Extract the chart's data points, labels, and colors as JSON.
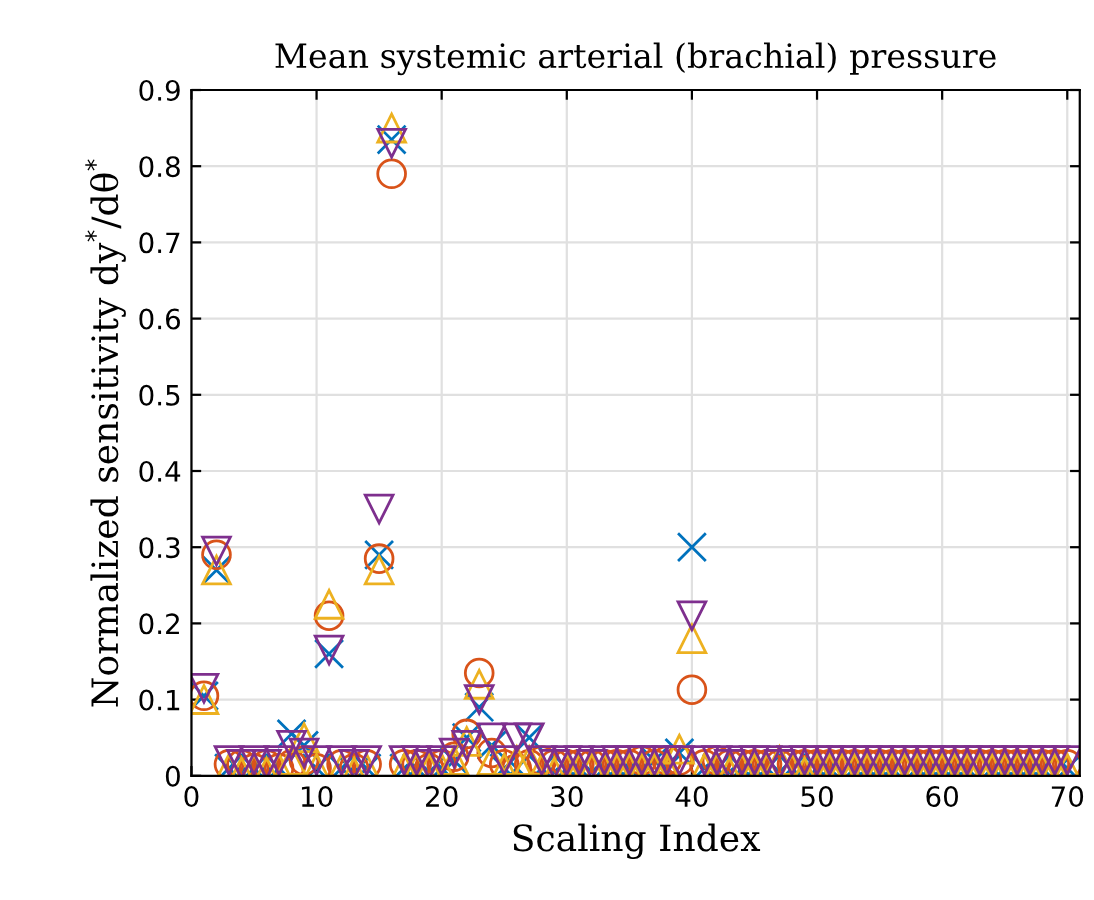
{
  "chart_data": {
    "type": "scatter",
    "title": "Mean systemic arterial (brachial) pressure",
    "xlabel": "Scaling Index",
    "ylabel": "Normalized sensitivity dy$^{*}$/dθ$^{*}$",
    "x": [
      1,
      2,
      3,
      4,
      5,
      6,
      7,
      8,
      9,
      10,
      11,
      12,
      13,
      14,
      15,
      16,
      17,
      18,
      19,
      20,
      21,
      22,
      23,
      24,
      25,
      26,
      27,
      28,
      29,
      30,
      31,
      32,
      33,
      34,
      35,
      36,
      37,
      38,
      39,
      40,
      41,
      42,
      43,
      44,
      45,
      46,
      47,
      48,
      49,
      50,
      51,
      52,
      53,
      54,
      55,
      56,
      57,
      58,
      59,
      60,
      61,
      62,
      63,
      64,
      65,
      66,
      67,
      68,
      69,
      70
    ],
    "xlim": [
      0,
      71
    ],
    "xticks": [
      0,
      10,
      20,
      30,
      40,
      50,
      60,
      70
    ],
    "ylim": [
      0,
      0.9
    ],
    "yticks": [
      0,
      0.1,
      0.2,
      0.3,
      0.4,
      0.5,
      0.6,
      0.7,
      0.8,
      0.9
    ],
    "grid": true,
    "series": [
      {
        "color": "#0072bd",
        "marker": "cross",
        "values": [
          0.105,
          0.27,
          0.01,
          0.005,
          0.01,
          0.005,
          0.01,
          0.055,
          0.04,
          0.01,
          0.16,
          0.01,
          0.005,
          0.01,
          0.29,
          0.835,
          0.01,
          0.01,
          0.005,
          0.01,
          0.02,
          0.05,
          0.09,
          0.04,
          0.01,
          0.01,
          0.05,
          0.01,
          0.005,
          0.01,
          0.01,
          0.005,
          0.01,
          0.01,
          0.01,
          0.01,
          0.02,
          0.01,
          0.03,
          0.3,
          0.01,
          0.01,
          0.005,
          0.01,
          0.01,
          0.01,
          0.005,
          0.01,
          0.01,
          0.01,
          0.01,
          0.005,
          0.01,
          0.01,
          0.01,
          0.01,
          0.005,
          0.01,
          0.01,
          0.01,
          0.01,
          0.01,
          0.005,
          0.01,
          0.01,
          0.01,
          0.01,
          0.01,
          0.005,
          0.01
        ]
      },
      {
        "color": "#d95319",
        "marker": "circle",
        "values": [
          0.105,
          0.29,
          0.015,
          0.015,
          0.01,
          0.015,
          0.01,
          0.015,
          0.02,
          0.01,
          0.21,
          0.015,
          0.01,
          0.015,
          0.285,
          0.79,
          0.015,
          0.015,
          0.01,
          0.015,
          0.025,
          0.055,
          0.135,
          0.03,
          0.015,
          0.01,
          0.015,
          0.02,
          0.015,
          0.015,
          0.015,
          0.015,
          0.015,
          0.015,
          0.015,
          0.02,
          0.015,
          0.02,
          0.02,
          0.113,
          0.015,
          0.02,
          0.015,
          0.015,
          0.015,
          0.015,
          0.015,
          0.015,
          0.015,
          0.015,
          0.015,
          0.015,
          0.015,
          0.015,
          0.015,
          0.015,
          0.015,
          0.015,
          0.015,
          0.015,
          0.015,
          0.015,
          0.015,
          0.015,
          0.015,
          0.015,
          0.015,
          0.015,
          0.015,
          0.015
        ]
      },
      {
        "color": "#edb120",
        "marker": "triangle",
        "values": [
          0.1,
          0.27,
          0.01,
          0.005,
          0.01,
          0.005,
          0.01,
          0.02,
          0.05,
          0.01,
          0.225,
          0.01,
          0.005,
          0.01,
          0.27,
          0.85,
          0.01,
          0.01,
          0.01,
          0.01,
          0.02,
          0.045,
          0.12,
          0.02,
          0.01,
          0.02,
          0.02,
          0.01,
          0.005,
          0.01,
          0.01,
          0.01,
          0.01,
          0.01,
          0.01,
          0.01,
          0.01,
          0.01,
          0.035,
          0.18,
          0.01,
          0.01,
          0.005,
          0.01,
          0.01,
          0.01,
          0.02,
          0.01,
          0.005,
          0.01,
          0.01,
          0.01,
          0.01,
          0.01,
          0.01,
          0.01,
          0.01,
          0.01,
          0.01,
          0.01,
          0.01,
          0.01,
          0.01,
          0.01,
          0.01,
          0.01,
          0.01,
          0.01,
          0.01,
          0.01
        ]
      },
      {
        "color": "#7e2f8e",
        "marker": "triangle_down",
        "values": [
          0.115,
          0.295,
          0.02,
          0.015,
          0.02,
          0.015,
          0.02,
          0.04,
          0.03,
          0.02,
          0.165,
          0.02,
          0.015,
          0.02,
          0.35,
          0.83,
          0.02,
          0.02,
          0.015,
          0.02,
          0.03,
          0.04,
          0.1,
          0.05,
          0.02,
          0.05,
          0.05,
          0.02,
          0.015,
          0.02,
          0.02,
          0.015,
          0.02,
          0.02,
          0.02,
          0.02,
          0.02,
          0.02,
          0.02,
          0.21,
          0.02,
          0.02,
          0.015,
          0.02,
          0.02,
          0.02,
          0.015,
          0.02,
          0.02,
          0.02,
          0.02,
          0.02,
          0.02,
          0.02,
          0.02,
          0.02,
          0.02,
          0.02,
          0.02,
          0.02,
          0.02,
          0.02,
          0.02,
          0.02,
          0.02,
          0.02,
          0.02,
          0.02,
          0.02,
          0.02
        ]
      }
    ]
  }
}
